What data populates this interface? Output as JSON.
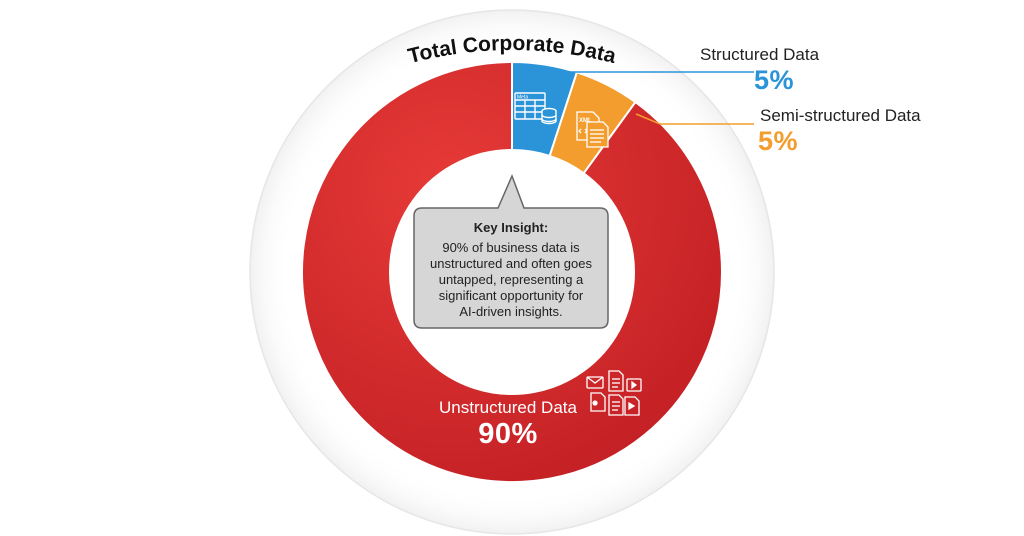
{
  "chart_data": {
    "type": "pie",
    "variant": "donut",
    "title": "Total Corporate Data",
    "slices": [
      {
        "name": "Structured Data",
        "value": 5,
        "label": "5%",
        "color": "#2b93d8",
        "icon": "spreadsheet-database-icon"
      },
      {
        "name": "Semi-structured Data",
        "value": 5,
        "label": "5%",
        "color": "#f29d2e",
        "icon": "xml-document-icon"
      },
      {
        "name": "Unstructured Data",
        "value": 90,
        "label": "90%",
        "color": "#d42a2a",
        "icon": "mixed-files-icon"
      }
    ],
    "legend": "callouts"
  },
  "insight": {
    "heading": "Key Insight:",
    "lines": [
      "90% of business data is",
      "unstructured and often goes",
      "untapped, representing a",
      "significant opportunity for",
      "AI-driven insights."
    ]
  },
  "icon_labels": {
    "structured": "Meta",
    "semi": "XML"
  },
  "colors": {
    "structured": "#2b93d8",
    "semi": "#f29d2e",
    "unstructured": "#d42a2a",
    "insight_fill": "#d6d6d6",
    "insight_stroke": "#666666"
  }
}
